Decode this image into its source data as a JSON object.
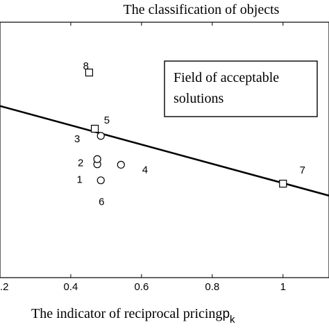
{
  "chart_data": {
    "type": "scatter",
    "title": "The classification of objects",
    "xlabel": "The indicator of reciprocal pricing",
    "xlabel_symbol": "p",
    "xlabel_subscript": "k",
    "ylabel": "",
    "xlim": [
      0.2,
      1.13
    ],
    "ylim": [
      0,
      1
    ],
    "x_ticks": [
      0.2,
      0.4,
      0.6,
      0.8,
      1
    ],
    "x_tick_labels": [
      ".2",
      "0.4",
      "0.6",
      "0.8",
      "1"
    ],
    "grid": false,
    "annotation_box": {
      "lines": [
        "Field of acceptable",
        "solutions"
      ]
    },
    "boundary_line": {
      "x": [
        0.2,
        1.13
      ],
      "y": [
        0.672,
        0.321
      ]
    },
    "series": [
      {
        "marker": "circle",
        "points": [
          {
            "label": "1",
            "x": 0.485,
            "y": 0.381
          },
          {
            "label": "2",
            "x": 0.475,
            "y": 0.444
          },
          {
            "label": "3",
            "x": 0.485,
            "y": 0.555
          },
          {
            "label": "4",
            "x": 0.542,
            "y": 0.442
          },
          {
            "label": "6",
            "x": 0.475,
            "y": 0.464
          }
        ]
      },
      {
        "marker": "square",
        "points": [
          {
            "label": "5",
            "x": 0.468,
            "y": 0.583
          },
          {
            "label": "7",
            "x": 1.0,
            "y": 0.368
          },
          {
            "label": "8",
            "x": 0.452,
            "y": 0.803
          }
        ]
      }
    ],
    "point_label_positions": [
      {
        "label": "1",
        "x": 0.425,
        "y": 0.387
      },
      {
        "label": "2",
        "x": 0.428,
        "y": 0.452
      },
      {
        "label": "3",
        "x": 0.418,
        "y": 0.546
      },
      {
        "label": "4",
        "x": 0.61,
        "y": 0.425
      },
      {
        "label": "5",
        "x": 0.502,
        "y": 0.62
      },
      {
        "label": "6",
        "x": 0.487,
        "y": 0.3
      },
      {
        "label": "7",
        "x": 1.055,
        "y": 0.424
      },
      {
        "label": "8",
        "x": 0.443,
        "y": 0.832
      }
    ]
  }
}
